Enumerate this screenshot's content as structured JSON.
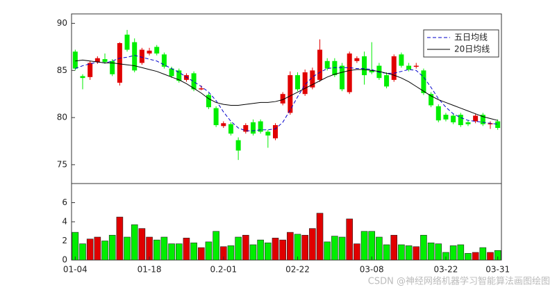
{
  "chart_data": [
    {
      "type": "candlestick",
      "ylim": [
        73,
        91
      ],
      "yticks": [
        75,
        80,
        85,
        90
      ],
      "up_color": "#e00000",
      "down_color": "#00ee00",
      "legend": "upper right",
      "open": [
        87.0,
        84.4,
        84.3,
        85.9,
        86.2,
        86.0,
        83.7,
        88.8,
        88.0,
        85.8,
        86.8,
        87.5,
        86.7,
        85.2,
        85.0,
        84.0,
        84.7,
        83.0,
        82.4,
        81.0,
        79.1,
        79.3,
        77.6,
        78.5,
        79.5,
        79.6,
        78.5,
        77.8,
        81.5,
        80.5,
        84.5,
        82.5,
        83.2,
        84.0,
        86.0,
        86.0,
        85.5,
        82.7,
        86.0,
        86.5,
        85.0,
        85.5,
        84.5,
        84.0,
        86.7,
        85.5,
        85.4,
        85.0,
        82.5,
        81.2,
        80.3,
        80.2,
        80.3,
        79.5,
        79.6,
        80.3,
        79.3,
        79.6
      ],
      "high": [
        87.2,
        84.6,
        86.0,
        86.5,
        86.8,
        86.2,
        88.0,
        89.3,
        88.4,
        87.4,
        87.4,
        87.7,
        86.9,
        85.4,
        85.2,
        84.7,
        84.9,
        83.4,
        82.6,
        81.2,
        79.6,
        79.5,
        77.9,
        79.4,
        79.8,
        79.8,
        78.7,
        79.4,
        82.7,
        84.9,
        84.8,
        85.1,
        85.3,
        88.3,
        86.3,
        86.3,
        85.8,
        87.0,
        86.5,
        87.0,
        88.0,
        85.8,
        84.8,
        86.7,
        86.9,
        85.8,
        85.8,
        85.2,
        82.7,
        81.4,
        80.5,
        80.4,
        80.5,
        79.7,
        80.4,
        80.5,
        79.6,
        79.8
      ],
      "low": [
        85.0,
        83.0,
        84.0,
        85.7,
        85.7,
        84.4,
        83.4,
        87.0,
        84.8,
        85.6,
        86.6,
        86.6,
        85.2,
        84.2,
        83.7,
        83.8,
        82.8,
        82.9,
        80.9,
        79.0,
        78.9,
        78.1,
        75.5,
        78.3,
        78.1,
        78.3,
        76.8,
        77.6,
        81.3,
        80.3,
        82.8,
        82.3,
        83.0,
        83.8,
        85.0,
        84.3,
        82.8,
        82.5,
        85.8,
        83.5,
        84.6,
        84.0,
        83.1,
        83.8,
        85.3,
        84.9,
        85.2,
        82.4,
        81.1,
        79.5,
        79.6,
        79.3,
        79.0,
        79.1,
        79.4,
        79.1,
        78.8,
        78.7
      ],
      "close": [
        85.2,
        84.2,
        85.8,
        86.3,
        85.9,
        84.6,
        87.9,
        87.2,
        85.0,
        87.2,
        87.1,
        86.8,
        85.4,
        84.4,
        83.9,
        84.5,
        83.0,
        83.1,
        81.1,
        79.2,
        79.4,
        78.3,
        76.5,
        79.2,
        78.3,
        78.5,
        78.1,
        79.2,
        82.5,
        84.5,
        83.0,
        84.8,
        85.0,
        87.2,
        85.2,
        84.5,
        83.0,
        86.8,
        86.3,
        84.5,
        84.8,
        84.2,
        83.3,
        86.5,
        85.5,
        85.1,
        85.5,
        82.6,
        81.3,
        79.7,
        79.8,
        79.5,
        79.2,
        79.3,
        80.2,
        79.3,
        79.4,
        78.9
      ],
      "lines": [
        {
          "name": "五日均线",
          "color": "#0000cc",
          "dash": true,
          "values": [
            85.2,
            85.5,
            85.7,
            85.9,
            85.8,
            86.0,
            86.3,
            86.4,
            86.6,
            86.4,
            86.2,
            86.0,
            85.6,
            85.2,
            84.8,
            84.3,
            83.8,
            83.3,
            82.7,
            81.8,
            80.6,
            79.6,
            78.9,
            78.6,
            78.6,
            78.7,
            78.7,
            78.8,
            79.5,
            80.8,
            82.2,
            83.5,
            84.3,
            84.8,
            85.2,
            85.3,
            85.3,
            85.3,
            85.2,
            85.2,
            85.1,
            84.8,
            84.7,
            84.7,
            84.9,
            85.1,
            85.0,
            84.3,
            83.2,
            82.0,
            81.1,
            80.4,
            80.0,
            79.7,
            79.6,
            79.5,
            79.4,
            79.3
          ]
        },
        {
          "name": "20日均线",
          "color": "#000000",
          "dash": false,
          "values": [
            86.0,
            86.1,
            86.0,
            85.9,
            85.8,
            85.8,
            85.7,
            85.6,
            85.5,
            85.3,
            85.1,
            84.9,
            84.6,
            84.3,
            84.0,
            83.6,
            83.1,
            82.6,
            82.0,
            81.6,
            81.4,
            81.3,
            81.3,
            81.4,
            81.5,
            81.6,
            81.6,
            81.7,
            81.9,
            82.3,
            82.7,
            83.1,
            83.5,
            83.9,
            84.3,
            84.6,
            84.8,
            85.0,
            85.1,
            85.1,
            85.0,
            84.9,
            84.7,
            84.5,
            84.2,
            83.8,
            83.3,
            82.8,
            82.3,
            81.9,
            81.6,
            81.3,
            81.0,
            80.7,
            80.4,
            80.1,
            79.9,
            79.7
          ]
        }
      ]
    },
    {
      "type": "bar",
      "ylim": [
        0,
        8
      ],
      "yticks": [
        0,
        2,
        4,
        6
      ],
      "categories": [
        "01-04",
        null,
        null,
        null,
        null,
        null,
        null,
        null,
        null,
        null,
        "01-18",
        null,
        null,
        null,
        null,
        null,
        null,
        null,
        null,
        null,
        "0.2-01",
        null,
        null,
        null,
        null,
        null,
        null,
        null,
        null,
        null,
        "02-22",
        null,
        null,
        null,
        null,
        null,
        null,
        null,
        null,
        null,
        "03-08",
        null,
        null,
        null,
        null,
        null,
        null,
        null,
        null,
        null,
        "03-22",
        null,
        null,
        null,
        null,
        null,
        null,
        "03-31"
      ],
      "values": [
        2.9,
        1.7,
        2.2,
        2.4,
        2.0,
        2.6,
        4.5,
        2.4,
        3.7,
        3.3,
        2.4,
        2.1,
        2.4,
        1.7,
        1.7,
        2.3,
        1.8,
        1.3,
        1.9,
        3.0,
        1.4,
        1.5,
        2.4,
        2.6,
        1.6,
        2.1,
        1.8,
        2.3,
        2.1,
        2.9,
        2.7,
        2.6,
        3.3,
        4.9,
        1.9,
        2.5,
        2.4,
        4.3,
        1.7,
        3.0,
        3.0,
        2.4,
        1.6,
        2.6,
        1.6,
        1.5,
        1.4,
        2.6,
        1.8,
        1.7,
        0.8,
        1.5,
        1.6,
        0.7,
        0.8,
        1.3,
        0.8,
        1.0
      ]
    }
  ],
  "watermark": "CSDN @神经网络机器学习智能算法画图绘图"
}
